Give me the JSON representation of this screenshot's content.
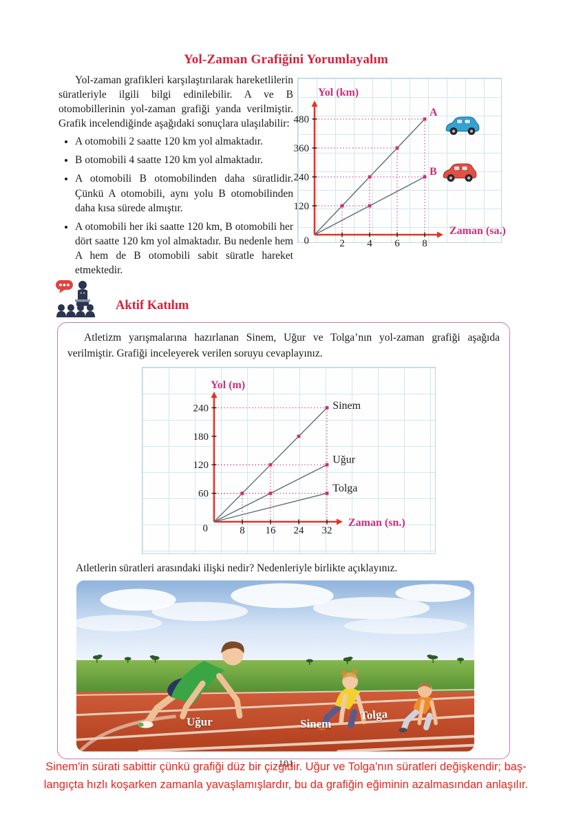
{
  "colors": {
    "title_red": "#d6203a",
    "answer_red": "#e8251c",
    "axis_red": "#e63127",
    "magenta": "#cc2f7b",
    "series_line": "#5d6f71",
    "box_border_pink": "#c878ae",
    "grid_blue": "#d3e6ec",
    "car_a_blue": "#33a3d4",
    "car_b_red": "#e25045"
  },
  "page": {
    "number": "101"
  },
  "header": {
    "title": "Yol-Zaman Grafiğini Yorumlayalım"
  },
  "intro": {
    "text": "Yol-zaman grafikleri karşılaştırılarak hareketlilerin süratleriyle ilgili bilgi edinilebilir. A ve B otomobillerinin yol-zaman grafiği yanda verilmiştir. Grafik incelendiğinde aşağıdaki sonuçlara ulaşılabilir:"
  },
  "bullets": [
    "A otomobili 2 saatte 120 km yol almaktadır.",
    "B otomobili 4 saatte 120 km yol almaktadır.",
    "A otomobili B otomobilinden daha süratlidir. Çünkü A otomobili, aynı yolu B otomobilinden daha kısa sürede almıştır.",
    "A otomobili her iki saatte 120 km, B otomobili her dört saatte 120 km yol almaktadır. Bu nedenle hem A hem de B otomobili sabit süratle hareket etmektedir."
  ],
  "aktif": {
    "heading": "Aktif Katılım",
    "icon": "presenter-with-audience-icon",
    "intro": "Atletizm yarışmalarına hazırlanan Sinem, Uğur ve Tolga’nın yol-zaman grafiği aşağıda verilmiştir. Grafiği inceleyerek verilen soruyu cevaplayınız.",
    "question": "Atletlerin süratleri arasındaki ilişki nedir? Nedenleriyle birlikte açıklayınız."
  },
  "photo": {
    "labels": [
      "Uğur",
      "Sinem",
      "Tolga"
    ]
  },
  "answer": {
    "lines": [
      "Sinem'in sürati sabittir çünkü grafiği düz bir çizgidir. Uğur ve Tolga'nın süratleri değişkendir; baş-",
      "langıçta hızlı koşarken zamanla yavaşlamışlardır, bu da grafiğin eğiminin azalmasından anlaşılır."
    ]
  },
  "chart_data": [
    {
      "id": "cars",
      "type": "line",
      "title": "",
      "xlabel": "Zaman (sa.)",
      "ylabel": "Yol (km)",
      "xlim": [
        0,
        9.6
      ],
      "ylim": [
        0,
        560
      ],
      "xticks": [
        2,
        4,
        6,
        8
      ],
      "yticks": [
        120,
        240,
        360,
        480
      ],
      "grid": true,
      "label_color": "#cc2f7b",
      "label_weight": 700,
      "series": [
        {
          "name": "A",
          "points": [
            [
              0,
              0
            ],
            [
              2,
              120
            ],
            [
              4,
              240
            ],
            [
              6,
              360
            ],
            [
              8,
              480
            ]
          ],
          "dots": [
            [
              2,
              120
            ],
            [
              4,
              240
            ],
            [
              6,
              360
            ],
            [
              8,
              480
            ]
          ],
          "label_at": [
            8.35,
            494
          ]
        },
        {
          "name": "B",
          "points": [
            [
              0,
              0
            ],
            [
              4,
              120
            ],
            [
              8,
              240
            ]
          ],
          "dots": [
            [
              4,
              120
            ],
            [
              8,
              240
            ]
          ],
          "label_at": [
            8.35,
            248
          ]
        }
      ],
      "guides": [
        [
          2,
          120
        ],
        [
          4,
          240
        ],
        [
          6,
          360
        ],
        [
          8,
          480
        ],
        [
          4,
          120
        ],
        [
          8,
          240
        ]
      ]
    },
    {
      "id": "athletes",
      "type": "line",
      "title": "",
      "xlabel": "Zaman (sn.)",
      "ylabel": "Yol (m)",
      "xlim": [
        0,
        38
      ],
      "ylim": [
        0,
        272
      ],
      "xticks": [
        8,
        16,
        24,
        32
      ],
      "yticks": [
        60,
        120,
        180,
        240
      ],
      "grid": true,
      "label_color": "#1d1d1d",
      "label_weight": 400,
      "series": [
        {
          "name": "Sinem",
          "points": [
            [
              0,
              0
            ],
            [
              32,
              240
            ]
          ],
          "dots": [
            [
              8,
              60
            ],
            [
              16,
              120
            ],
            [
              24,
              180
            ],
            [
              32,
              240
            ]
          ],
          "label_at": [
            33.6,
            238
          ]
        },
        {
          "name": "Uğur",
          "points": [
            [
              0,
              0
            ],
            [
              32,
              120
            ]
          ],
          "dots": [
            [
              16,
              60
            ],
            [
              32,
              120
            ]
          ],
          "label_at": [
            33.6,
            124
          ]
        },
        {
          "name": "Tolga",
          "points": [
            [
              0,
              0
            ],
            [
              32,
              60
            ]
          ],
          "dots": [
            [
              32,
              60
            ]
          ],
          "label_at": [
            33.6,
            64
          ]
        }
      ],
      "guides": [
        [
          8,
          60
        ],
        [
          16,
          120
        ],
        [
          32,
          240
        ],
        [
          16,
          60
        ],
        [
          32,
          120
        ],
        [
          32,
          60
        ]
      ]
    }
  ]
}
